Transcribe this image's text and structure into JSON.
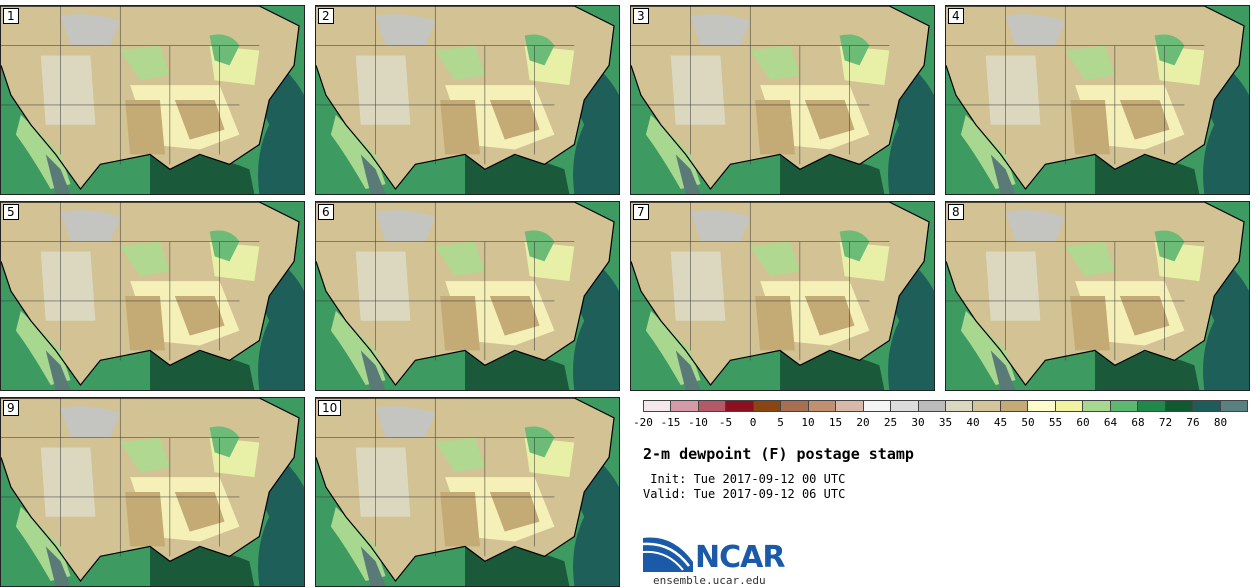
{
  "stamps": [
    {
      "label": "1"
    },
    {
      "label": "2"
    },
    {
      "label": "3"
    },
    {
      "label": "4"
    },
    {
      "label": "5"
    },
    {
      "label": "6"
    },
    {
      "label": "7"
    },
    {
      "label": "8"
    },
    {
      "label": "9"
    },
    {
      "label": "10"
    }
  ],
  "legend": {
    "ticks": [
      "-20",
      "-15",
      "-10",
      "-5",
      "0",
      "5",
      "10",
      "15",
      "20",
      "25",
      "30",
      "35",
      "40",
      "45",
      "50",
      "55",
      "60",
      "64",
      "68",
      "72",
      "76",
      "80"
    ],
    "colors": [
      "#f4e8ec",
      "#d49aa6",
      "#b35a66",
      "#8c1020",
      "#8b4513",
      "#a87050",
      "#c09070",
      "#d8b8a8",
      "#f4f4f4",
      "#dcdcdc",
      "#bcbcbc",
      "#dcd8c0",
      "#d4c49c",
      "#c4aa74",
      "#fffccc",
      "#f0f4a0",
      "#a8d890",
      "#5cb870",
      "#208848",
      "#105a30",
      "#1e5c5c",
      "#5a8080"
    ]
  },
  "title": "2-m dewpoint (F) postage stamp",
  "init": " Init: Tue 2017-09-12 00 UTC",
  "valid": "Valid: Tue 2017-09-12 06 UTC",
  "logo_text": "NCAR",
  "url": "ensemble.ucar.edu"
}
